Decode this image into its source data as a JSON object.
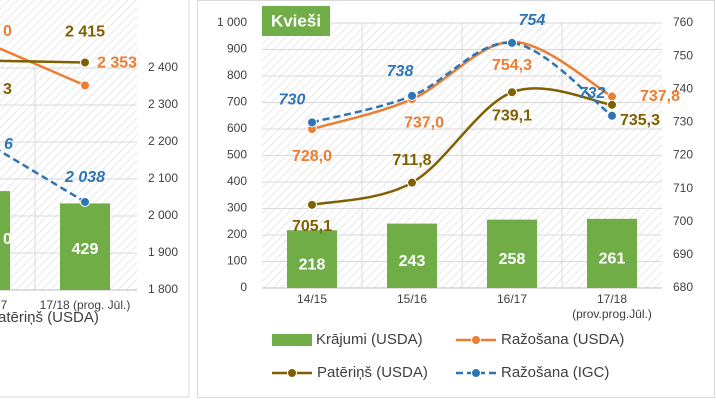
{
  "chart_data": [
    {
      "type": "bar-line",
      "categories": [
        "7",
        "17/18 (prog. Jūl.)"
      ],
      "bars": {
        "color": "#70ad47",
        "values": [
          490,
          429
        ],
        "value_labels": [
          null,
          "429"
        ]
      },
      "ylim": [
        0,
        1100
      ],
      "y2lim": [
        1800,
        2400
      ],
      "y2ticks": [
        {
          "value": 1800,
          "label": "1 800"
        },
        {
          "value": 1900,
          "label": "1 900"
        },
        {
          "value": 2000,
          "label": "2 000"
        },
        {
          "value": 2100,
          "label": "2 100"
        },
        {
          "value": 2200,
          "label": "2 200"
        },
        {
          "value": 2300,
          "label": "2 300"
        },
        {
          "value": 2400,
          "label": "2 400"
        }
      ],
      "series": [
        {
          "name": "ažošana (USDA)",
          "color": "#ed7d31",
          "axis": "y2",
          "values": [
            2470,
            2353
          ],
          "value_labels": [
            null,
            "2 353"
          ]
        },
        {
          "name": "atēriņš (USDA)",
          "color": "#7f6000",
          "axis": "y2",
          "values": [
            2420,
            2415
          ],
          "value_labels": [
            null,
            "2 415"
          ]
        },
        {
          "color": "#2e75b6",
          "axis": "y2",
          "dashed": true,
          "values": [
            2200,
            2038
          ],
          "value_labels": [
            null,
            "2 038"
          ]
        }
      ],
      "annotations": [
        "0",
        "3",
        "6",
        "0"
      ],
      "grid": true
    },
    {
      "type": "bar-line",
      "title": "Kvieši",
      "categories": [
        "14/15",
        "15/16",
        "16/17",
        "17/18 (prov.prog.Jūl.)"
      ],
      "bars": {
        "name": "Krājumi (USDA)",
        "color": "#70ad47",
        "values": [
          218,
          243,
          258,
          261
        ]
      },
      "ylim": [
        0,
        1000
      ],
      "yticks": [
        0,
        100,
        200,
        300,
        400,
        500,
        600,
        700,
        800,
        900,
        {
          "value": 1000,
          "label": "1 000"
        }
      ],
      "y2lim": [
        680,
        760
      ],
      "y2ticks": [
        680,
        690,
        700,
        710,
        720,
        730,
        740,
        750,
        760
      ],
      "series": [
        {
          "name": "Ražošana (USDA)",
          "color": "#ed7d31",
          "axis": "y2",
          "values": [
            728.0,
            737.0,
            754.3,
            737.8
          ],
          "value_labels": [
            "728,0",
            "737,0",
            "754,3",
            "737,8"
          ]
        },
        {
          "name": "Patēriņš (USDA)",
          "color": "#7f6000",
          "axis": "y2",
          "values": [
            705.1,
            711.8,
            739.1,
            735.3
          ],
          "value_labels": [
            "705,1",
            "711,8",
            "739,1",
            "735,3"
          ]
        },
        {
          "name": "Ražošana (IGC)",
          "color": "#2e75b6",
          "axis": "y2",
          "dashed": true,
          "values": [
            730,
            738,
            754,
            732
          ],
          "value_labels": [
            "730",
            "738",
            "754",
            "732"
          ]
        }
      ],
      "grid": true
    }
  ]
}
